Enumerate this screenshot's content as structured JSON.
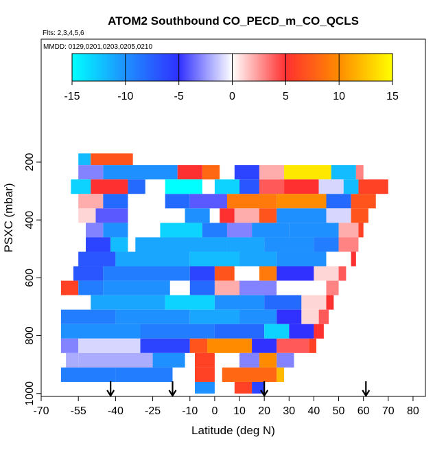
{
  "chart_data": {
    "type": "heatmap",
    "title": "ATOM2 Southbound CO_PECD_m_CO_QCLS",
    "subtitle": "Flts: 2,3,4,5,6",
    "annotation": "MMDD: 0129,0201,0203,0205,0210",
    "x_label": "Latitude (deg N)",
    "y_label": "PSXC (mbar)",
    "xlim": [
      -70,
      85
    ],
    "xticks": [
      -70,
      -55,
      -40,
      -25,
      -10,
      0,
      10,
      20,
      30,
      40,
      50,
      60,
      70,
      80
    ],
    "ylim": [
      1010,
      -225
    ],
    "yticks": [
      200,
      400,
      600,
      800,
      1000
    ],
    "colorbar_lim": [
      -15,
      15
    ],
    "colorbar_ticks": [
      -15,
      -10,
      -5,
      0,
      5,
      10,
      15
    ],
    "colors": [
      "#00ffff",
      "#1e90ff",
      "#3030ff",
      "#ffffff",
      "#ff3030",
      "#ff8c00",
      "#ffff00"
    ],
    "arrows": [
      -42,
      -17,
      20,
      61
    ],
    "rows": [
      {
        "p": [
          170,
          210
        ],
        "segments": [
          [
            -55,
            -50,
            -12
          ],
          [
            -50,
            -33,
            7
          ]
        ]
      },
      {
        "p": [
          210,
          260
        ],
        "segments": [
          [
            -60,
            -55,
            0
          ],
          [
            -55,
            -45,
            -3
          ],
          [
            -45,
            -15,
            -10
          ],
          [
            -15,
            -5,
            5
          ],
          [
            -5,
            2,
            8
          ],
          [
            8,
            18,
            -6
          ],
          [
            18,
            28,
            2
          ],
          [
            28,
            47,
            14
          ],
          [
            47,
            57,
            -12
          ],
          [
            57,
            60,
            3
          ]
        ]
      },
      {
        "p": [
          260,
          310
        ],
        "segments": [
          [
            -58,
            -50,
            -13
          ],
          [
            -50,
            -35,
            5
          ],
          [
            -35,
            -28,
            -8
          ],
          [
            -20,
            -5,
            -15
          ],
          [
            0,
            10,
            -13
          ],
          [
            10,
            18,
            -7
          ],
          [
            18,
            28,
            4
          ],
          [
            28,
            42,
            5
          ],
          [
            42,
            52,
            -1
          ],
          [
            52,
            58,
            -12
          ],
          [
            58,
            70,
            6
          ]
        ]
      },
      {
        "p": [
          310,
          360
        ],
        "segments": [
          [
            -55,
            -45,
            2
          ],
          [
            -45,
            -35,
            -8
          ],
          [
            -20,
            -10,
            -8
          ],
          [
            -10,
            5,
            -4
          ],
          [
            5,
            25,
            9
          ],
          [
            25,
            45,
            10
          ],
          [
            45,
            55,
            -8
          ],
          [
            55,
            65,
            7
          ]
        ]
      },
      {
        "p": [
          360,
          410
        ],
        "segments": [
          [
            -55,
            -48,
            1
          ],
          [
            -48,
            -35,
            -4
          ],
          [
            -12,
            -2,
            -10
          ],
          [
            2,
            8,
            5
          ],
          [
            8,
            18,
            2
          ],
          [
            18,
            25,
            7
          ],
          [
            25,
            45,
            -10
          ],
          [
            45,
            55,
            -1
          ],
          [
            55,
            62,
            7
          ]
        ]
      },
      {
        "p": [
          410,
          460
        ],
        "segments": [
          [
            -52,
            -45,
            -3
          ],
          [
            -45,
            -35,
            -10
          ],
          [
            -22,
            -5,
            -13
          ],
          [
            -5,
            5,
            -9
          ],
          [
            5,
            15,
            -3
          ],
          [
            15,
            30,
            -10
          ],
          [
            30,
            50,
            -10
          ],
          [
            50,
            58,
            2
          ],
          [
            58,
            60,
            6
          ]
        ]
      },
      {
        "p": [
          460,
          510
        ],
        "segments": [
          [
            -52,
            -42,
            -6
          ],
          [
            -42,
            -35,
            -12
          ],
          [
            -32,
            5,
            -11
          ],
          [
            5,
            20,
            -11
          ],
          [
            20,
            40,
            -10
          ],
          [
            40,
            50,
            -9
          ],
          [
            50,
            58,
            3
          ]
        ]
      },
      {
        "p": [
          510,
          560
        ],
        "segments": [
          [
            -55,
            -40,
            -7
          ],
          [
            -40,
            -10,
            -11
          ],
          [
            -10,
            10,
            -12
          ],
          [
            10,
            25,
            -11
          ],
          [
            25,
            45,
            -10
          ],
          [
            45,
            55,
            0
          ],
          [
            55,
            57,
            5
          ]
        ]
      },
      {
        "p": [
          560,
          610
        ],
        "segments": [
          [
            -57,
            -45,
            -7
          ],
          [
            -45,
            -10,
            -9
          ],
          [
            -10,
            0,
            -6
          ],
          [
            0,
            8,
            7
          ],
          [
            8,
            18,
            0
          ],
          [
            18,
            25,
            9
          ],
          [
            25,
            40,
            -5
          ],
          [
            40,
            50,
            1
          ],
          [
            50,
            53,
            4
          ]
        ]
      },
      {
        "p": [
          610,
          660
        ],
        "segments": [
          [
            -62,
            -55,
            6
          ],
          [
            -55,
            -45,
            -9
          ],
          [
            -45,
            -18,
            -10
          ],
          [
            -18,
            -10,
            0
          ],
          [
            -10,
            0,
            -8
          ],
          [
            0,
            10,
            2
          ],
          [
            10,
            25,
            -3
          ],
          [
            25,
            45,
            0
          ],
          [
            45,
            50,
            3
          ]
        ]
      },
      {
        "p": [
          660,
          710
        ],
        "segments": [
          [
            -60,
            -50,
            0
          ],
          [
            -50,
            -20,
            -11
          ],
          [
            -20,
            0,
            -13
          ],
          [
            0,
            20,
            -10
          ],
          [
            20,
            35,
            -8
          ],
          [
            35,
            45,
            1
          ],
          [
            45,
            48,
            5
          ]
        ]
      },
      {
        "p": [
          710,
          760
        ],
        "segments": [
          [
            -62,
            -40,
            -9
          ],
          [
            -40,
            -10,
            -10
          ],
          [
            -10,
            10,
            -11
          ],
          [
            10,
            25,
            -10
          ],
          [
            25,
            35,
            -5
          ],
          [
            35,
            42,
            1
          ],
          [
            42,
            46,
            4
          ]
        ]
      },
      {
        "p": [
          760,
          810
        ],
        "segments": [
          [
            -62,
            -30,
            -10
          ],
          [
            -30,
            0,
            -9
          ],
          [
            0,
            20,
            -8
          ],
          [
            20,
            30,
            -13
          ],
          [
            30,
            40,
            -5
          ],
          [
            40,
            44,
            5
          ]
        ]
      },
      {
        "p": [
          810,
          860
        ],
        "segments": [
          [
            -62,
            -55,
            -3
          ],
          [
            -55,
            -30,
            -1
          ],
          [
            -30,
            -10,
            -6
          ],
          [
            -10,
            -3,
            7
          ],
          [
            -3,
            15,
            10
          ],
          [
            15,
            25,
            -5
          ],
          [
            25,
            38,
            4
          ],
          [
            38,
            41,
            6
          ]
        ]
      },
      {
        "p": [
          860,
          910
        ],
        "segments": [
          [
            -60,
            -55,
            -2
          ],
          [
            -55,
            -25,
            -2
          ],
          [
            -25,
            -12,
            -10
          ],
          [
            -8,
            0,
            6
          ],
          [
            10,
            18,
            -3
          ],
          [
            18,
            25,
            10
          ],
          [
            25,
            32,
            -3
          ]
        ]
      },
      {
        "p": [
          910,
          960
        ],
        "segments": [
          [
            -62,
            -40,
            -9
          ],
          [
            -40,
            -17,
            -9
          ],
          [
            -8,
            0,
            6
          ],
          [
            3,
            25,
            8
          ],
          [
            25,
            28,
            12
          ]
        ]
      },
      {
        "p": [
          960,
          1000
        ],
        "segments": [
          [
            -8,
            0,
            -10
          ],
          [
            8,
            15,
            6
          ],
          [
            15,
            20,
            -6
          ]
        ]
      }
    ]
  }
}
